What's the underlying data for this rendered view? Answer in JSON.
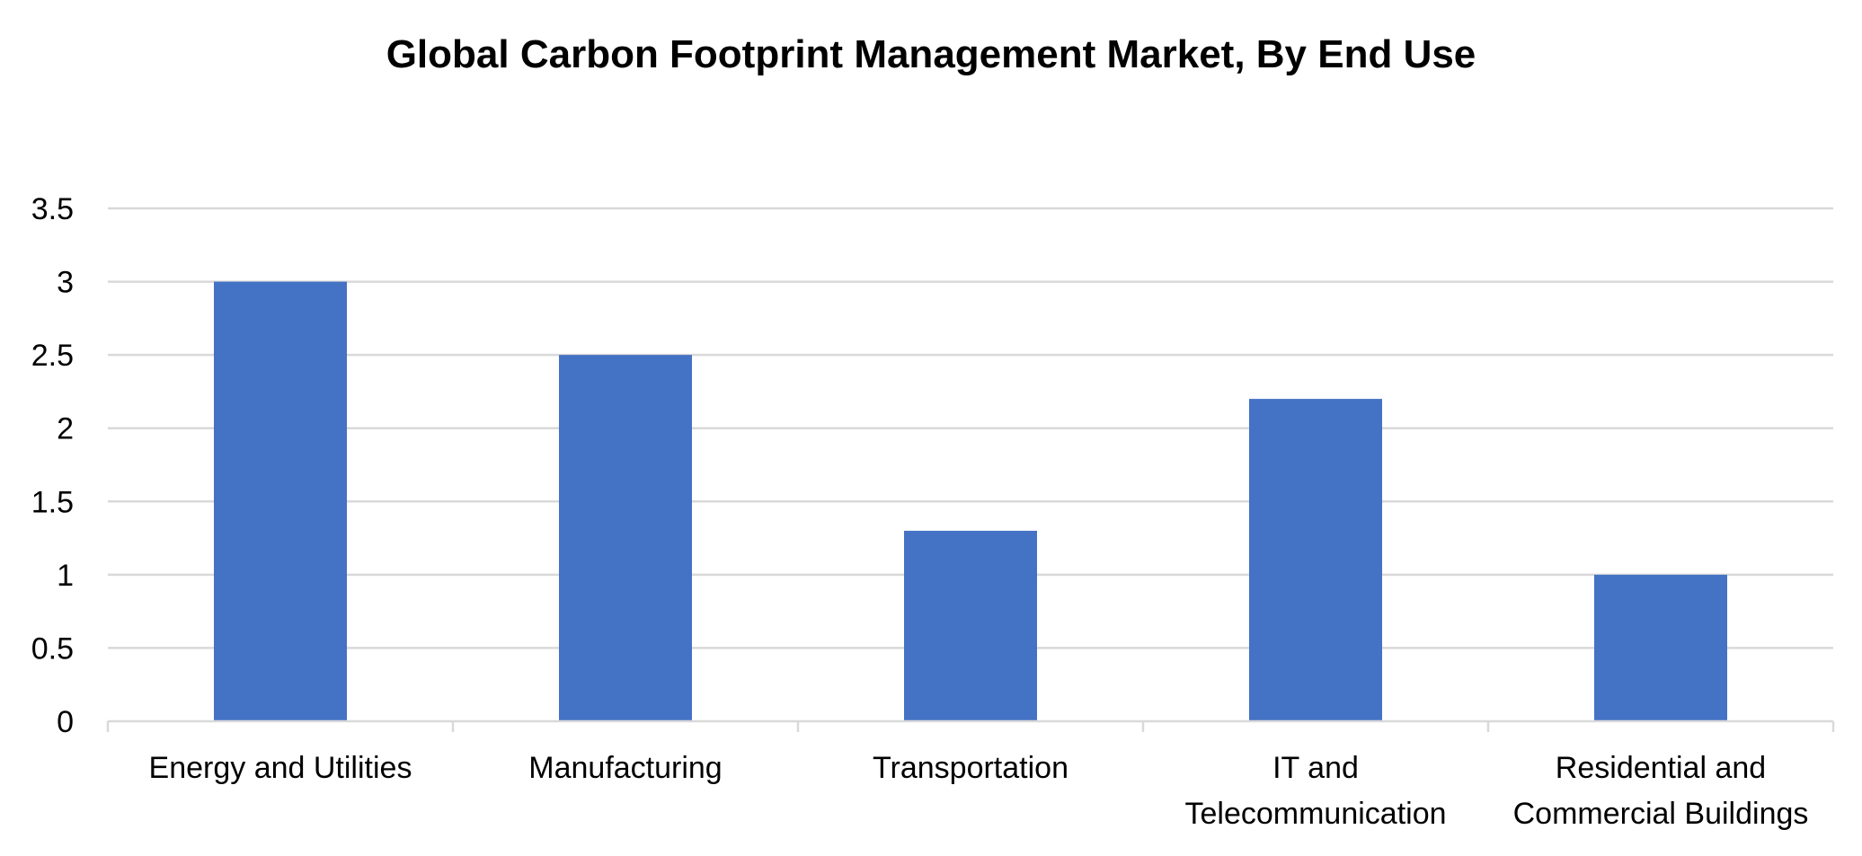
{
  "chart_data": {
    "type": "bar",
    "title": "Global Carbon Footprint Management Market, By End Use",
    "xlabel": "",
    "ylabel": "",
    "categories": [
      "Energy and Utilities",
      "Manufacturing",
      "Transportation",
      "IT and Telecommunication",
      "Residential and Commercial Buildings"
    ],
    "category_lines": [
      [
        "Energy and Utilities"
      ],
      [
        "Manufacturing"
      ],
      [
        "Transportation"
      ],
      [
        "IT and",
        "Telecommunication"
      ],
      [
        "Residential and",
        "Commercial Buildings"
      ]
    ],
    "values": [
      3.0,
      2.5,
      1.3,
      2.2,
      1.0
    ],
    "ylim": [
      0,
      3.5
    ],
    "yticks": [
      "0",
      "0.5",
      "1",
      "1.5",
      "2",
      "2.5",
      "3",
      "3.5"
    ],
    "grid": true,
    "legend": "none",
    "bar_color": "#4472c4",
    "grid_color": "#d9d9d9"
  }
}
